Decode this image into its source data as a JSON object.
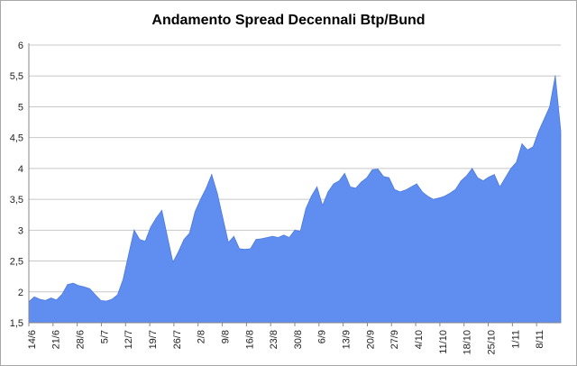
{
  "chart_data": {
    "type": "area",
    "title": "Andamento Spread Decennali Btp/Bund",
    "xlabel": "",
    "ylabel": "",
    "ylim": [
      1.5,
      6
    ],
    "y_ticks": [
      "1,5",
      "2",
      "2,5",
      "3",
      "3,5",
      "4",
      "4,5",
      "5",
      "5,5",
      "6"
    ],
    "grid": "horizontal",
    "color": "#5f8df0",
    "x_ticks": [
      "14/6",
      "21/6",
      "28/6",
      "5/7",
      "12/7",
      "19/7",
      "26/7",
      "2/8",
      "9/8",
      "16/8",
      "23/8",
      "30/8",
      "6/9",
      "13/9",
      "20/9",
      "27/9",
      "4/10",
      "11/10",
      "18/10",
      "25/10",
      "1/11",
      "8/11"
    ],
    "series": [
      {
        "values": [
          1.84,
          1.92,
          1.88,
          1.86,
          1.9,
          1.87,
          1.96,
          2.12,
          2.14,
          2.1,
          2.08,
          2.05,
          1.95,
          1.86,
          1.85,
          1.88,
          1.95,
          2.2,
          2.6,
          3.0,
          2.85,
          2.82,
          3.05,
          3.2,
          3.32,
          2.9,
          2.48,
          2.65,
          2.85,
          2.95,
          3.3,
          3.5,
          3.68,
          3.9,
          3.6,
          3.2,
          2.8,
          2.9,
          2.7,
          2.69,
          2.7,
          2.85,
          2.86,
          2.88,
          2.9,
          2.88,
          2.92,
          2.88,
          3.0,
          2.98,
          3.35,
          3.55,
          3.7,
          3.4,
          3.62,
          3.75,
          3.8,
          3.92,
          3.7,
          3.68,
          3.78,
          3.85,
          3.98,
          3.99,
          3.87,
          3.85,
          3.66,
          3.62,
          3.65,
          3.7,
          3.75,
          3.62,
          3.55,
          3.5,
          3.52,
          3.55,
          3.6,
          3.66,
          3.8,
          3.88,
          4.0,
          3.85,
          3.8,
          3.86,
          3.9,
          3.7,
          3.85,
          4.0,
          4.1,
          4.4,
          4.3,
          4.35,
          4.6,
          4.8,
          5.0,
          5.5,
          4.6
        ]
      }
    ]
  }
}
